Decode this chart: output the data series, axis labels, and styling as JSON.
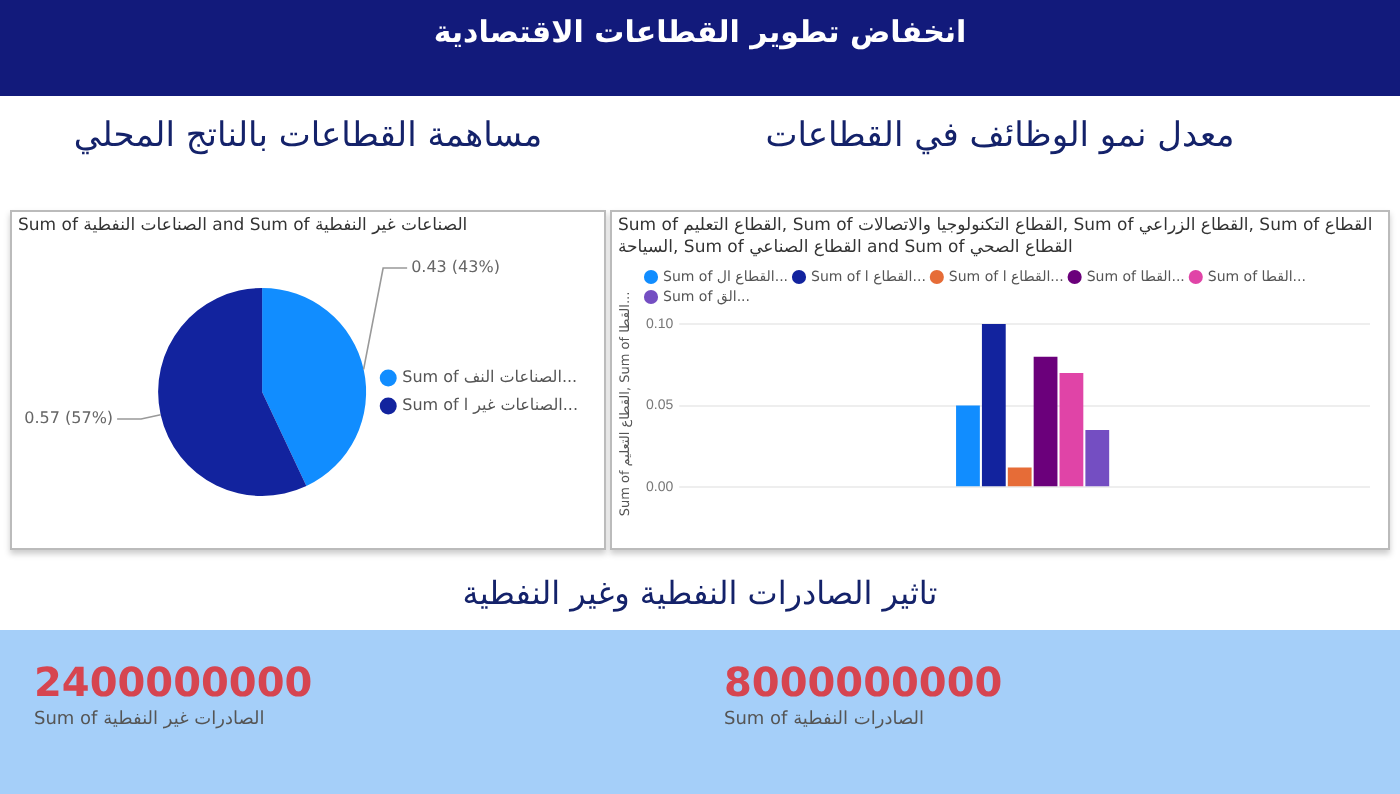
{
  "chart_data": [
    {
      "type": "pie",
      "title": "مساهمة القطاعات بالناتج المحلي",
      "subtitle": "Sum of الصناعات النفطية and Sum of الصناعات غير النفطية",
      "annotations": [
        "انخفاض تطوير القطاعات الاقتصادية"
      ],
      "categories": [
        "Sum of الصناعات النف...",
        "Sum of الصناعات غير ا..."
      ],
      "values": [
        0.43,
        0.57
      ],
      "value_labels": [
        "0.43 (43%)",
        "0.57 (57%)"
      ],
      "colors": [
        "#118dff",
        "#12239e"
      ],
      "legend": "right"
    },
    {
      "type": "bar",
      "title": "معدل نمو الوظائف في القطاعات",
      "subtitle": "Sum of القطاع التعليم, Sum of القطاع التكنولوجيا والاتصالات, Sum of القطاع الزراعي, Sum of القطاع السياحة, Sum of القطاع الصناعي and Sum of القطاع الصحي",
      "ylabel": "Sum of القطاع التعليم, Sum of القطا...",
      "categories": [
        null
      ],
      "series": [
        {
          "name": "Sum of القطاع ال...",
          "color": "#118dff",
          "values": [
            0.05
          ]
        },
        {
          "name": "Sum of القطاع ا...",
          "color": "#12239e",
          "values": [
            0.1
          ]
        },
        {
          "name": "Sum of القطاع ا...",
          "color": "#e66c37",
          "values": [
            0.012
          ]
        },
        {
          "name": "Sum of القطا...",
          "color": "#6b007b",
          "values": [
            0.08
          ]
        },
        {
          "name": "Sum of القطا...",
          "color": "#e044a7",
          "values": [
            0.07
          ]
        },
        {
          "name": "Sum of الق...",
          "color": "#744ec2",
          "values": [
            0.035
          ]
        }
      ],
      "ylim": [
        0,
        0.1
      ],
      "yticks": [
        {
          "value": 0,
          "label": "0.00"
        },
        {
          "value": 0.05,
          "label": "0.05"
        },
        {
          "value": 0.1,
          "label": "0.10"
        }
      ],
      "grid": "y",
      "legend": "top left"
    },
    {
      "type": "other",
      "title": "تاثير الصادرات النفطية وغير النفطية",
      "categories": [
        "Sum of الصادرات غير النفطية",
        "Sum of الصادرات النفطية"
      ],
      "values": [
        2400000000,
        8000000000
      ],
      "data_labels": true
    }
  ]
}
